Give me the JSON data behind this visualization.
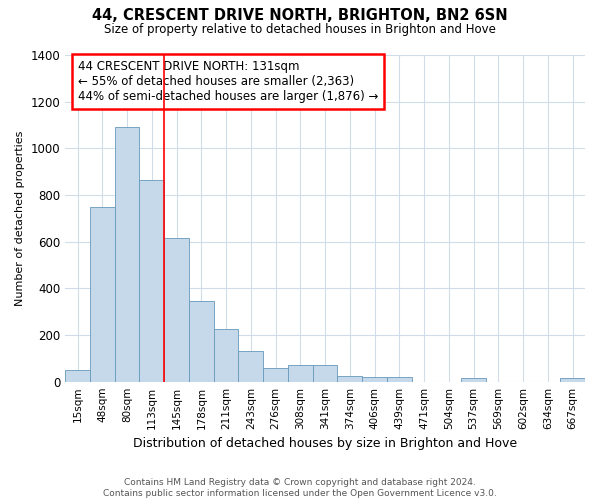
{
  "title1": "44, CRESCENT DRIVE NORTH, BRIGHTON, BN2 6SN",
  "title2": "Size of property relative to detached houses in Brighton and Hove",
  "xlabel": "Distribution of detached houses by size in Brighton and Hove",
  "ylabel": "Number of detached properties",
  "footnote": "Contains HM Land Registry data © Crown copyright and database right 2024.\nContains public sector information licensed under the Open Government Licence v3.0.",
  "categories": [
    "15sqm",
    "48sqm",
    "80sqm",
    "113sqm",
    "145sqm",
    "178sqm",
    "211sqm",
    "243sqm",
    "276sqm",
    "308sqm",
    "341sqm",
    "374sqm",
    "406sqm",
    "439sqm",
    "471sqm",
    "504sqm",
    "537sqm",
    "569sqm",
    "602sqm",
    "634sqm",
    "667sqm"
  ],
  "values": [
    50,
    750,
    1090,
    865,
    615,
    345,
    225,
    130,
    60,
    70,
    70,
    25,
    20,
    20,
    0,
    0,
    15,
    0,
    0,
    0,
    15
  ],
  "bar_color": "#c6d9ea",
  "bar_edge_color": "#6699bb",
  "red_line_x": 3.5,
  "annotation_text": "44 CRESCENT DRIVE NORTH: 131sqm\n← 55% of detached houses are smaller (2,363)\n44% of semi-detached houses are larger (1,876) →",
  "ylim": [
    0,
    1400
  ],
  "yticks": [
    0,
    200,
    400,
    600,
    800,
    1000,
    1200,
    1400
  ],
  "background_color": "#ffffff",
  "grid_color": "#d0dce8"
}
